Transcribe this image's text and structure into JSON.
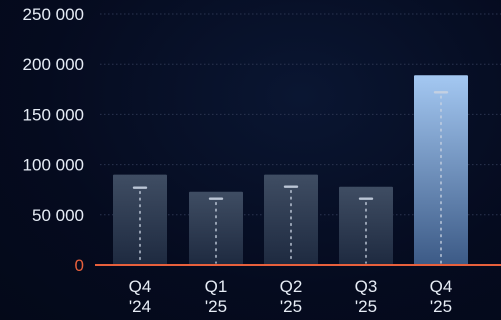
{
  "chart_data": {
    "type": "bar",
    "categories": [
      [
        "Q4",
        "'24"
      ],
      [
        "Q1",
        "'25"
      ],
      [
        "Q2",
        "'25"
      ],
      [
        "Q3",
        "'25"
      ],
      [
        "Q4",
        "'25"
      ]
    ],
    "values": [
      90000,
      73000,
      90000,
      78000,
      189000
    ],
    "markers": [
      77000,
      66000,
      78000,
      66000,
      172000
    ],
    "y_ticks": [
      0,
      50000,
      100000,
      150000,
      200000,
      250000
    ],
    "y_tick_labels": [
      "0",
      "50 000",
      "100 000",
      "150 000",
      "200 000",
      "250 000"
    ],
    "ylim": [
      0,
      250000
    ],
    "grid": true,
    "highlight_index": 4,
    "colors": {
      "background": "#050b1f",
      "bar_top": "#3f4d63",
      "bar_bottom": "#1e2a40",
      "highlight_top": "#a4c8f2",
      "highlight_bottom": "#3c5a86",
      "baseline": "#e8603c",
      "zero_label": "#e8603c",
      "grid": "#2a3450",
      "tick_label": "#e6ecf5",
      "marker": "#c9d3e2"
    }
  }
}
